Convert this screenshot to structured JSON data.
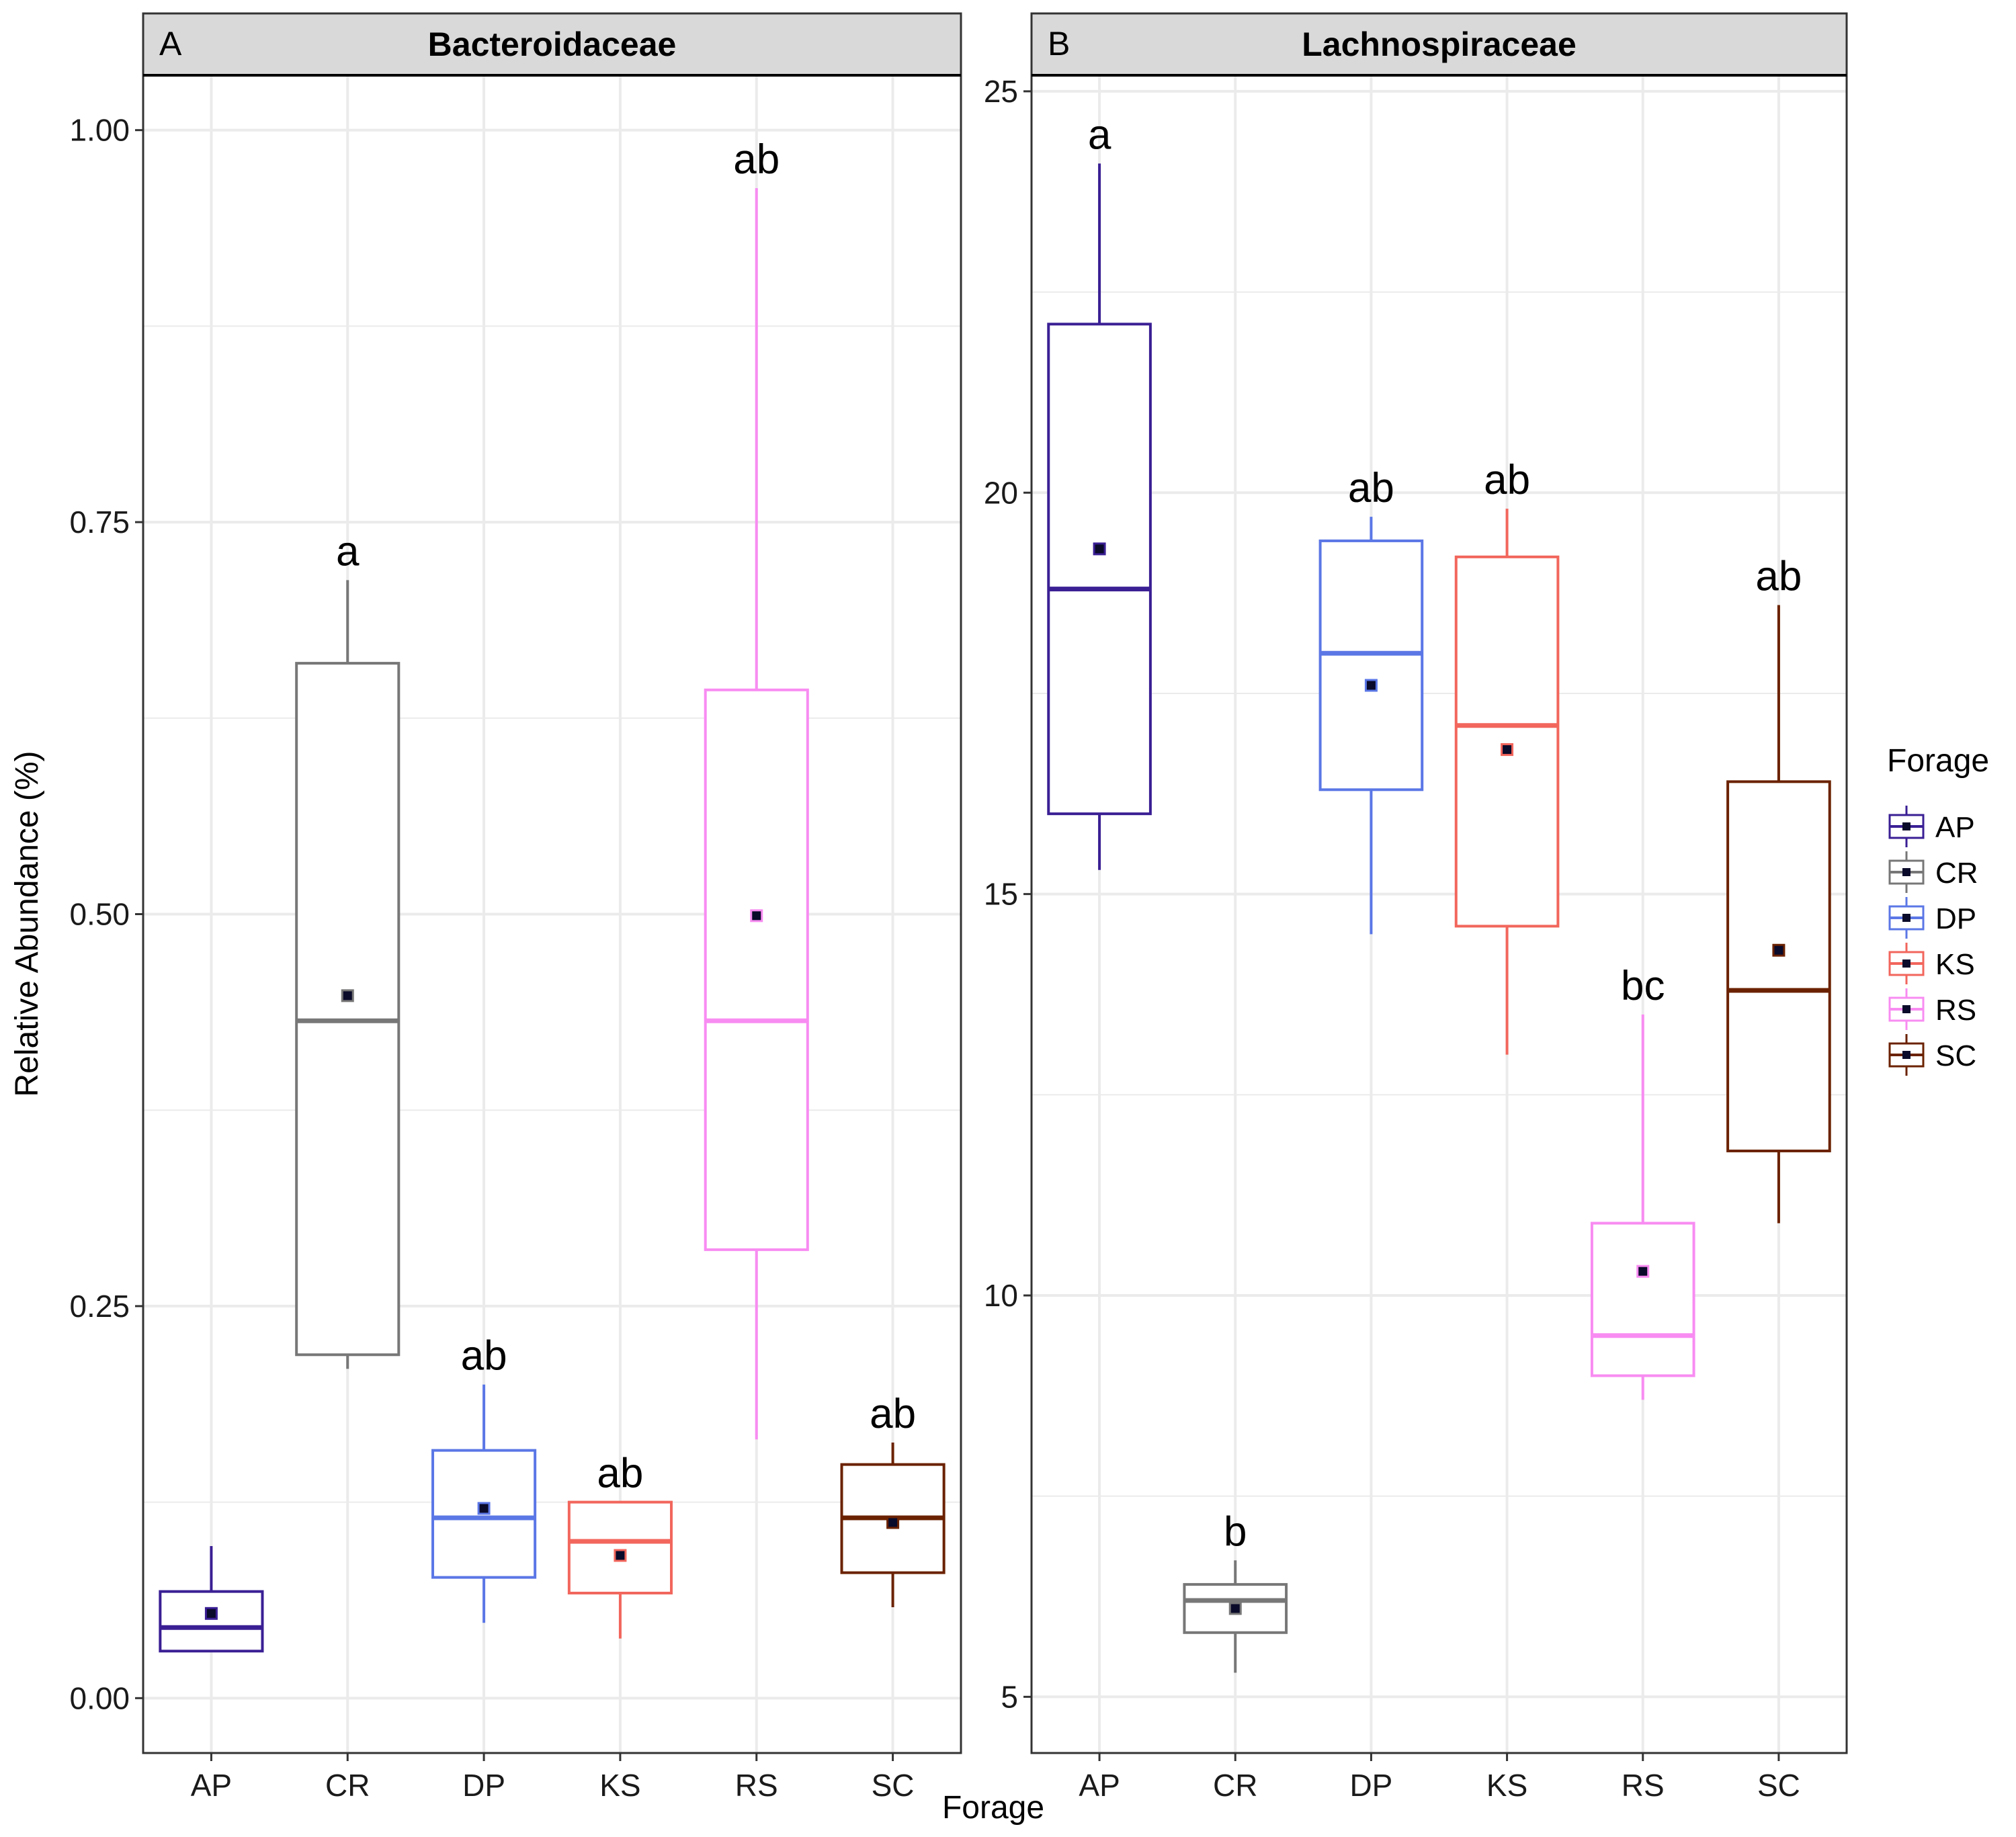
{
  "chart_data": [
    {
      "type": "boxplot",
      "panel_tag": "A",
      "title": "Bacteroidaceae",
      "ylim": [
        -0.035,
        1.035
      ],
      "yticks": [
        0.0,
        0.25,
        0.5,
        0.75,
        1.0
      ],
      "ytick_labels": [
        "0.00",
        "0.25",
        "0.50",
        "0.75",
        "1.00"
      ],
      "categories": [
        "AP",
        "CR",
        "DP",
        "KS",
        "RS",
        "SC"
      ],
      "boxes": [
        {
          "name": "AP",
          "whisker_low": 0.03,
          "q1": 0.03,
          "median": 0.045,
          "q3": 0.068,
          "whisker_high": 0.097,
          "mean": 0.054,
          "letter": ""
        },
        {
          "name": "CR",
          "whisker_low": 0.21,
          "q1": 0.219,
          "median": 0.432,
          "q3": 0.66,
          "whisker_high": 0.713,
          "mean": 0.448,
          "letter": "a"
        },
        {
          "name": "DP",
          "whisker_low": 0.048,
          "q1": 0.077,
          "median": 0.115,
          "q3": 0.158,
          "whisker_high": 0.2,
          "mean": 0.121,
          "letter": "ab"
        },
        {
          "name": "KS",
          "whisker_low": 0.038,
          "q1": 0.067,
          "median": 0.1,
          "q3": 0.125,
          "whisker_high": 0.125,
          "mean": 0.091,
          "letter": "ab"
        },
        {
          "name": "RS",
          "whisker_low": 0.165,
          "q1": 0.286,
          "median": 0.432,
          "q3": 0.643,
          "whisker_high": 0.963,
          "mean": 0.499,
          "letter": "ab"
        },
        {
          "name": "SC",
          "whisker_low": 0.058,
          "q1": 0.08,
          "median": 0.115,
          "q3": 0.149,
          "whisker_high": 0.163,
          "mean": 0.112,
          "letter": "ab"
        }
      ]
    },
    {
      "type": "boxplot",
      "panel_tag": "B",
      "title": "Lachnospiraceae",
      "ylim": [
        4.3,
        25.2
      ],
      "yticks": [
        5,
        10,
        15,
        20,
        25
      ],
      "ytick_labels": [
        "5",
        "10",
        "15",
        "20",
        "25"
      ],
      "categories": [
        "AP",
        "CR",
        "DP",
        "KS",
        "RS",
        "SC"
      ],
      "boxes": [
        {
          "name": "AP",
          "whisker_low": 15.3,
          "q1": 16.0,
          "median": 18.8,
          "q3": 22.1,
          "whisker_high": 24.1,
          "mean": 19.3,
          "letter": "a"
        },
        {
          "name": "CR",
          "whisker_low": 5.3,
          "q1": 5.8,
          "median": 6.2,
          "q3": 6.4,
          "whisker_high": 6.7,
          "mean": 6.1,
          "letter": "b"
        },
        {
          "name": "DP",
          "whisker_low": 14.5,
          "q1": 16.3,
          "median": 18.0,
          "q3": 19.4,
          "whisker_high": 19.7,
          "mean": 17.6,
          "letter": "ab"
        },
        {
          "name": "KS",
          "whisker_low": 13.0,
          "q1": 14.6,
          "median": 17.1,
          "q3": 19.2,
          "whisker_high": 19.8,
          "mean": 16.8,
          "letter": "ab"
        },
        {
          "name": "RS",
          "whisker_low": 8.7,
          "q1": 9.0,
          "median": 9.5,
          "q3": 10.9,
          "whisker_high": 13.5,
          "mean": 10.3,
          "letter": "bc"
        },
        {
          "name": "SC",
          "whisker_low": 10.9,
          "q1": 11.8,
          "median": 13.8,
          "q3": 16.4,
          "whisker_high": 18.6,
          "mean": 14.3,
          "letter": "ab"
        }
      ]
    }
  ],
  "xlabel": "Forage",
  "ylabel": "Relative Abundance (%)",
  "legend": {
    "title": "Forage",
    "position": "right",
    "entries": [
      "AP",
      "CR",
      "DP",
      "KS",
      "RS",
      "SC"
    ]
  },
  "colors": {
    "AP": "#3a1f94",
    "CR": "#777777",
    "DP": "#5b77e6",
    "KS": "#f2665c",
    "RS": "#f88cf2",
    "SC": "#6b2200",
    "mean_point": "#0a0a2a",
    "strip_fill": "#d9d9d9",
    "grid": "#ebebeb"
  }
}
